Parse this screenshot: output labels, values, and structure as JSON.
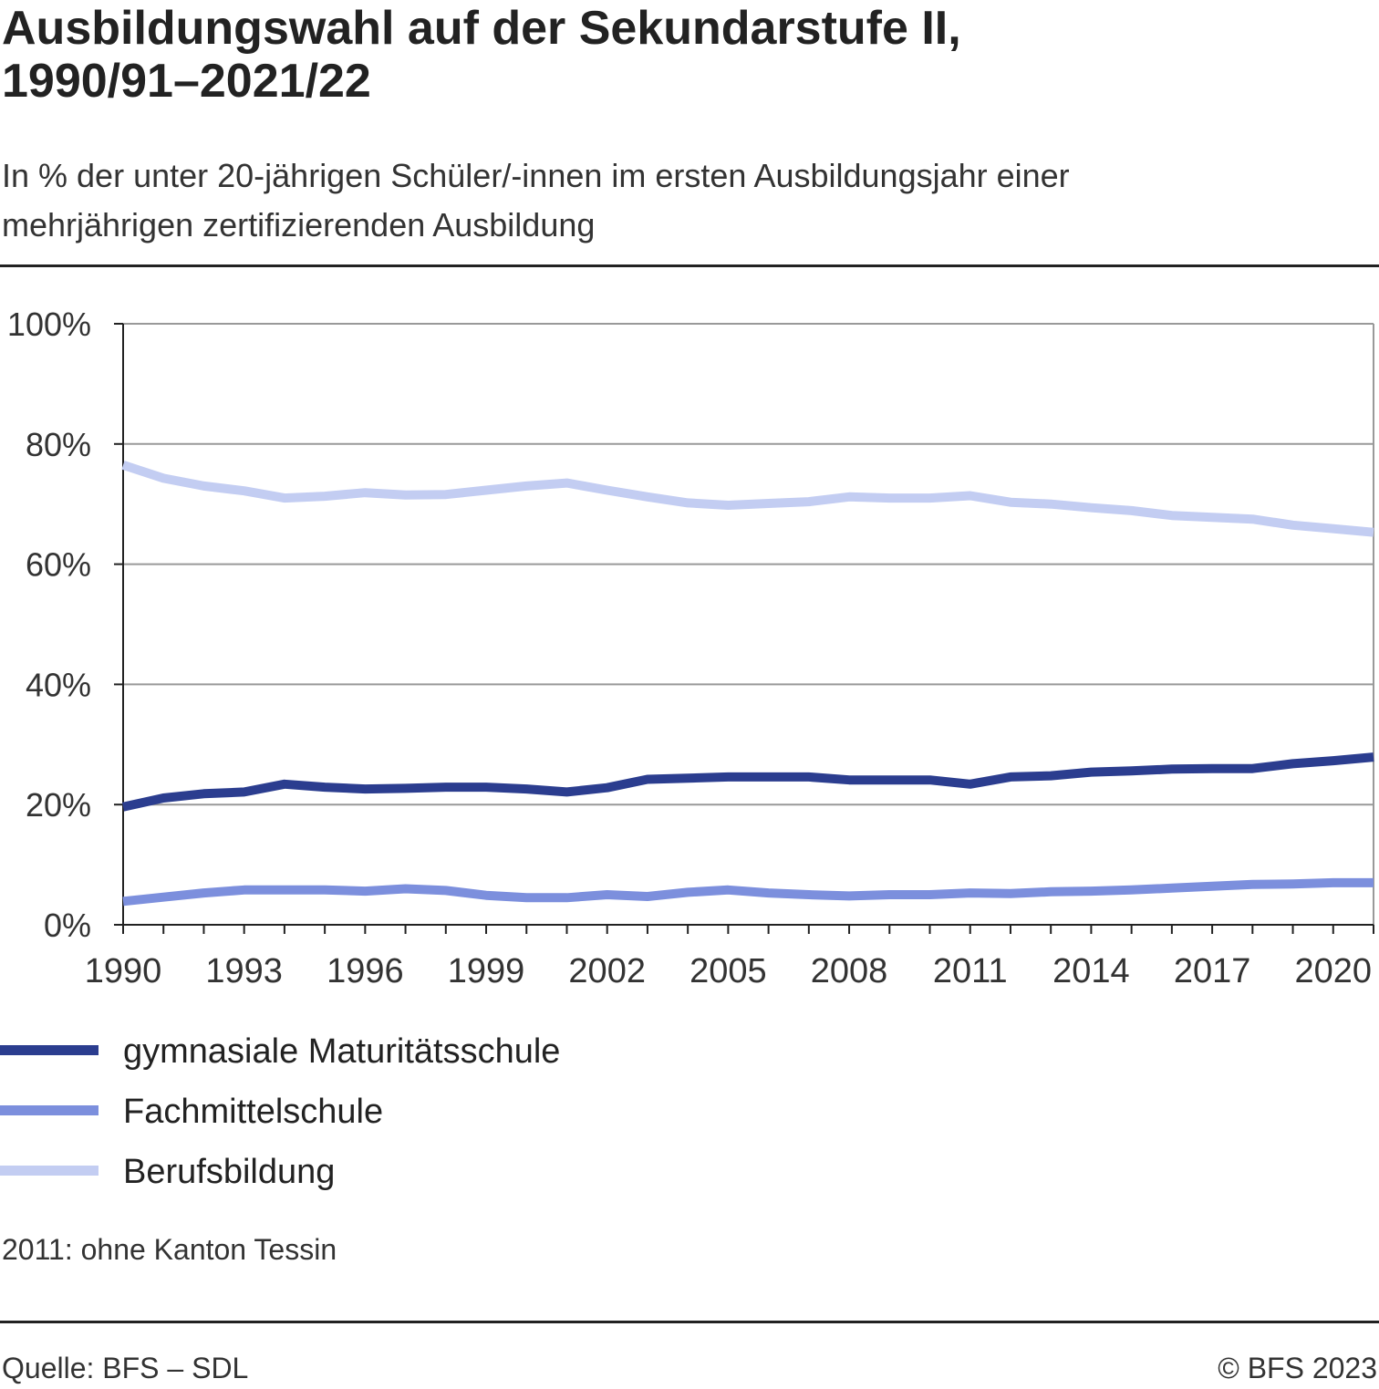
{
  "header": {
    "title_line1": "Ausbildungswahl auf der Sekundarstufe II,",
    "title_line2": "1990/91–2021/22",
    "subtitle_line1": "In % der unter 20-jährigen Schüler/-innen im ersten Ausbildungsjahr einer",
    "subtitle_line2": "mehrjährigen zertifizierenden Ausbildung"
  },
  "chart_data": {
    "type": "line",
    "title": "Ausbildungswahl auf der Sekundarstufe II, 1990/91–2021/22",
    "subtitle": "In % der unter 20-jährigen Schüler/-innen im ersten Ausbildungsjahr einer mehrjährigen zertifizierenden Ausbildung",
    "xlabel": "",
    "ylabel": "",
    "x": [
      1990,
      1991,
      1992,
      1993,
      1994,
      1995,
      1996,
      1997,
      1998,
      1999,
      2000,
      2001,
      2002,
      2003,
      2004,
      2005,
      2006,
      2007,
      2008,
      2009,
      2010,
      2011,
      2012,
      2013,
      2014,
      2015,
      2016,
      2017,
      2018,
      2019,
      2020,
      2021
    ],
    "xlim": [
      1990,
      2021
    ],
    "x_ticks": [
      "1990",
      "1993",
      "1996",
      "1999",
      "2002",
      "2005",
      "2008",
      "2011",
      "2014",
      "2017",
      "2020"
    ],
    "ylim": [
      0,
      100
    ],
    "y_ticks": [
      "0%",
      "20%",
      "40%",
      "60%",
      "80%",
      "100%"
    ],
    "grid": true,
    "legend_position": "bottom",
    "series": [
      {
        "name": "gymnasiale Maturitätsschule",
        "color": "#2b3d8f",
        "values": [
          19.6,
          21.1,
          21.8,
          22.1,
          23.4,
          22.9,
          22.6,
          22.7,
          22.9,
          22.9,
          22.6,
          22.1,
          22.8,
          24.2,
          24.4,
          24.6,
          24.6,
          24.6,
          24.1,
          24.1,
          24.1,
          23.4,
          24.6,
          24.8,
          25.4,
          25.6,
          25.9,
          26.0,
          26.0,
          26.8,
          27.3,
          27.9
        ]
      },
      {
        "name": "Fachmittelschule",
        "color": "#7c8fdd",
        "values": [
          3.9,
          4.6,
          5.3,
          5.8,
          5.8,
          5.8,
          5.6,
          6.0,
          5.7,
          4.9,
          4.5,
          4.5,
          5.0,
          4.7,
          5.4,
          5.8,
          5.3,
          5.0,
          4.8,
          5.0,
          5.0,
          5.3,
          5.2,
          5.5,
          5.6,
          5.8,
          6.1,
          6.4,
          6.7,
          6.8,
          7.0,
          7.0
        ]
      },
      {
        "name": "Berufsbildung",
        "color": "#c3cdf2",
        "values": [
          76.5,
          74.3,
          73.0,
          72.2,
          71.0,
          71.3,
          71.9,
          71.5,
          71.6,
          72.3,
          73.0,
          73.5,
          72.3,
          71.2,
          70.2,
          69.8,
          70.1,
          70.4,
          71.2,
          71.0,
          71.0,
          71.4,
          70.3,
          70.0,
          69.4,
          68.9,
          68.1,
          67.8,
          67.5,
          66.5,
          65.9,
          65.3
        ]
      }
    ],
    "axis_color": "#222222",
    "grid_color": "#999999"
  },
  "footnote": "2011: ohne Kanton Tessin",
  "footer": {
    "source": "Quelle: BFS – SDL",
    "copyright": "© BFS 2023"
  }
}
